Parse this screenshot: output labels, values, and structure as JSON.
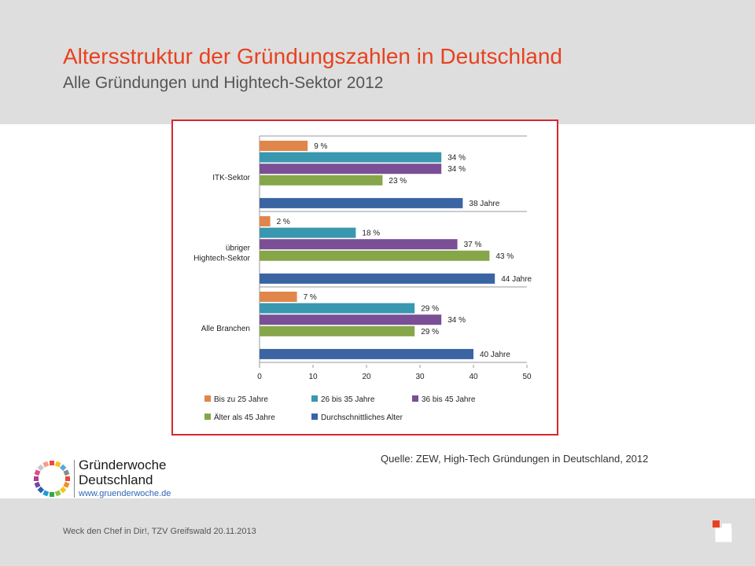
{
  "header": {
    "title": "Altersstruktur der Gründungszahlen in Deutschland",
    "subtitle": "Alle Gründungen und Hightech-Sektor 2012"
  },
  "chart_data": {
    "type": "bar",
    "orientation": "horizontal",
    "categories": [
      [
        "ITK-Sektor"
      ],
      [
        "übriger",
        "Hightech-Sektor"
      ],
      [
        "Alle Branchen"
      ]
    ],
    "series": [
      {
        "name": "Bis zu 25 Jahre",
        "color": "#e0864a",
        "values": [
          9,
          2,
          7
        ],
        "labels": [
          "9 %",
          "2 %",
          "7 %"
        ]
      },
      {
        "name": "26 bis 35 Jahre",
        "color": "#3a97b0",
        "values": [
          34,
          18,
          29
        ],
        "labels": [
          "34 %",
          "18 %",
          "29 %"
        ]
      },
      {
        "name": "36 bis 45 Jahre",
        "color": "#7a4f95",
        "values": [
          34,
          37,
          34
        ],
        "labels": [
          "34 %",
          "37 %",
          "34 %"
        ]
      },
      {
        "name": "Älter als 45 Jahre",
        "color": "#86a64a",
        "values": [
          23,
          43,
          29
        ],
        "labels": [
          "23 %",
          "43 %",
          "29 %"
        ]
      },
      {
        "name": "Durchschnittliches Alter",
        "color": "#3b64a3",
        "values": [
          38,
          44,
          40
        ],
        "labels": [
          "38 Jahre",
          "44 Jahre",
          "40 Jahre"
        ]
      }
    ],
    "xlim": [
      0,
      50
    ],
    "xticks": [
      0,
      10,
      20,
      30,
      40,
      50
    ],
    "grid": false,
    "legend_position": "bottom"
  },
  "source": "Quelle: ZEW, High-Tech Gründungen in Deutschland, 2012",
  "logo": {
    "name_line1": "Gründerwoche",
    "name_line2": "Deutschland",
    "url": "www.gruenderwoche.de"
  },
  "footer": {
    "text": "Weck den Chef in Dir!, TZV Greifswald 20.11.2013"
  },
  "icons": {
    "logo_mark": "ring-of-colored-segments-icon",
    "corner_mark": "corner-square-icon"
  }
}
